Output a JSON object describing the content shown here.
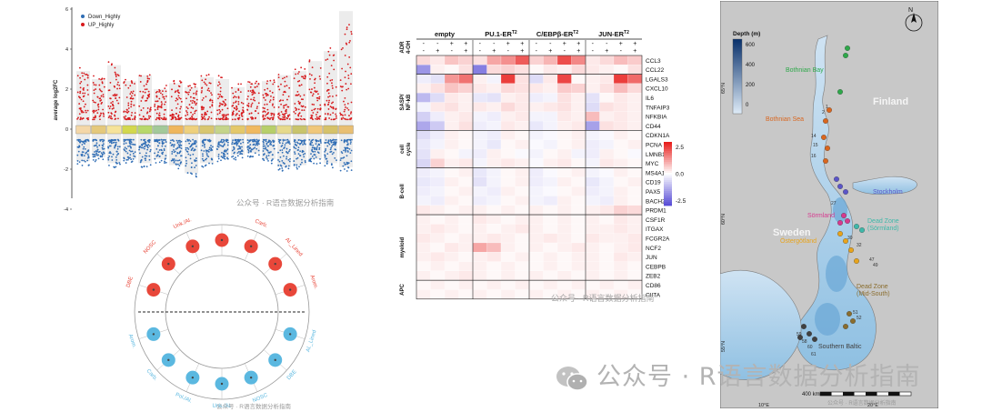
{
  "watermark": {
    "main": "公众号 · R语言数据分析指南",
    "small": "公众号 · R语言数据分析指南"
  },
  "colors": {
    "down": "#2f6db5",
    "up": "#d7191c",
    "circle_up": "#e8473a",
    "circle_down": "#5bb8e0",
    "heat_pos": "#e8201e",
    "heat_neg": "#5a4fd6",
    "map_land": "#c8c8c8",
    "map_water_deep": "#08306b",
    "map_water_shallow": "#deebf7"
  },
  "volcano": {
    "ylabel": "average log2FC",
    "legend": [
      {
        "label": "Down_Highly",
        "color": "#2f6db5"
      },
      {
        "label": "UP_Highly",
        "color": "#d7191c"
      }
    ],
    "yticks": [
      -4,
      -2,
      0,
      2,
      4,
      6
    ],
    "clusters": 18,
    "up_max": [
      2.9,
      2.5,
      3.2,
      2.4,
      2.7,
      2.0,
      2.3,
      2.1,
      2.6,
      2.5,
      2.1,
      2.3,
      2.4,
      2.7,
      2.9,
      3.4,
      3.9,
      5.9
    ],
    "down_min": [
      -1.6,
      -1.4,
      -1.7,
      -1.5,
      -1.7,
      -1.5,
      -1.8,
      -2.2,
      -1.7,
      -1.4,
      -1.3,
      -1.2,
      -1.5,
      -1.9,
      -1.8,
      -1.5,
      -1.7,
      -1.9
    ]
  },
  "radial": {
    "top_labels": [
      "DBE",
      "NOSC",
      "Unk./Al.",
      "Pol./Al.",
      "Carb.",
      "Al._Lined",
      "Arom."
    ],
    "bottom_labels": [
      "Arom.",
      "Carb.",
      "Pol./Al.",
      "Unk./Al.",
      "NOSC",
      "DBE",
      "Al._Lined"
    ]
  },
  "chart_data": {
    "type": "heatmap",
    "legend_ticks": [
      "2.5",
      "0.0",
      "-2.5"
    ],
    "col_groups": [
      {
        "name": "empty",
        "sup": ""
      },
      {
        "name": "PU.1-ER",
        "sup": "T2"
      },
      {
        "name": "C/EBPβ-ER",
        "sup": "T2"
      },
      {
        "name": "JUN-ER",
        "sup": "T2"
      }
    ],
    "annotation_rows": [
      {
        "name": "ADR",
        "values": [
          "-",
          "-",
          "+",
          "+",
          "-",
          "-",
          "+",
          "+",
          "-",
          "-",
          "+",
          "+",
          "-",
          "-",
          "+",
          "+"
        ]
      },
      {
        "name": "4-OH",
        "values": [
          "-",
          "+",
          "-",
          "+",
          "-",
          "+",
          "-",
          "+",
          "-",
          "+",
          "-",
          "+",
          "-",
          "+",
          "-",
          "+"
        ]
      }
    ],
    "row_groups": [
      {
        "name": "",
        "rows": [
          "CCL3",
          "CCL22"
        ]
      },
      {
        "name": "SASP/ NF-kB",
        "rows": [
          "LGALS3",
          "CXCL10",
          "IL6",
          "TNFAIP3",
          "NFKBIA",
          "CD44"
        ]
      },
      {
        "name": "cell cycle",
        "rows": [
          "CDKN1A",
          "PCNA",
          "LMNB1",
          "MYC"
        ]
      },
      {
        "name": "B-cell",
        "rows": [
          "MS4A1",
          "CD19",
          "PAX5",
          "BACH2",
          "PRDM1"
        ]
      },
      {
        "name": "myeloid",
        "rows": [
          "CSF1R",
          "ITGAX",
          "FCGR2A",
          "NCF2",
          "JUN",
          "CEBPB",
          "ZEB2"
        ]
      },
      {
        "name": "APC",
        "rows": [
          "CD86",
          "CIITA"
        ]
      }
    ],
    "values": [
      [
        0.5,
        0.3,
        0.8,
        0.6,
        0.4,
        1.2,
        1.5,
        2.2,
        0.6,
        1.0,
        2.4,
        1.6,
        0.3,
        0.5,
        0.9,
        0.7
      ],
      [
        -1.8,
        0.2,
        0.1,
        0.4,
        -2.2,
        0.5,
        0.6,
        0.4,
        0.1,
        0.3,
        0.2,
        0.5,
        0.3,
        0.2,
        0.1,
        0.4
      ],
      [
        -0.3,
        -0.5,
        1.4,
        1.9,
        0.2,
        -0.2,
        2.6,
        0.4,
        -0.6,
        0.3,
        2.5,
        0.1,
        0.2,
        0.3,
        2.6,
        2.0
      ],
      [
        0.2,
        0.4,
        0.8,
        0.6,
        0.3,
        0.2,
        0.5,
        0.4,
        0.3,
        0.2,
        0.7,
        0.6,
        0.2,
        0.4,
        0.9,
        0.5
      ],
      [
        -1.2,
        -0.6,
        0.3,
        0.2,
        -0.4,
        -0.5,
        0.2,
        0.3,
        -0.3,
        -0.2,
        0.4,
        0.2,
        -0.5,
        0.1,
        0.3,
        0.2
      ],
      [
        -0.2,
        0.3,
        0.4,
        0.2,
        0.3,
        0.2,
        0.5,
        0.3,
        0.2,
        0.3,
        0.4,
        0.2,
        -0.6,
        0.4,
        0.3,
        0.2
      ],
      [
        -0.8,
        -0.3,
        0.2,
        0.3,
        -0.2,
        -0.3,
        0.2,
        0.3,
        -0.2,
        -0.2,
        0.3,
        0.2,
        0.9,
        0.2,
        0.3,
        0.2
      ],
      [
        -1.5,
        -0.9,
        0.2,
        0.4,
        -0.3,
        -0.2,
        0.3,
        0.2,
        -0.4,
        -0.2,
        0.2,
        0.3,
        -1.6,
        0.4,
        0.3,
        0.2
      ],
      [
        -0.6,
        -0.3,
        0.2,
        0.1,
        -0.2,
        -0.3,
        0.2,
        0.1,
        -0.2,
        -0.1,
        0.1,
        0.2,
        -0.2,
        -0.1,
        0.2,
        0.1
      ],
      [
        -0.4,
        -0.2,
        0.2,
        0.1,
        -0.2,
        -0.4,
        0.1,
        0.2,
        -0.1,
        -0.2,
        0.1,
        0.2,
        -0.3,
        -0.2,
        0.1,
        0.2
      ],
      [
        -0.5,
        0.2,
        0.1,
        -0.2,
        -0.3,
        0.2,
        0.1,
        -0.1,
        -0.2,
        0.1,
        0.2,
        -0.2,
        -0.3,
        0.2,
        0.1,
        -0.1
      ],
      [
        -0.7,
        0.6,
        0.2,
        0.3,
        -0.2,
        0.2,
        0.3,
        0.2,
        -0.1,
        0.2,
        0.3,
        0.1,
        -0.2,
        0.3,
        0.2,
        0.1
      ],
      [
        -0.3,
        -0.2,
        0.1,
        0.2,
        -0.4,
        -0.2,
        0.1,
        0.2,
        -0.3,
        -0.1,
        0.1,
        0.2,
        -0.2,
        -0.1,
        0.2,
        0.1
      ],
      [
        -0.4,
        -0.3,
        0.2,
        0.1,
        -0.5,
        -0.2,
        0.1,
        0.2,
        -0.3,
        -0.2,
        0.2,
        0.1,
        -0.4,
        -0.2,
        0.1,
        0.2
      ],
      [
        -0.3,
        -0.2,
        0.1,
        0.2,
        -0.2,
        -0.3,
        0.2,
        0.1,
        -0.2,
        -0.1,
        0.1,
        0.2,
        -0.3,
        -0.2,
        0.2,
        0.1
      ],
      [
        -0.2,
        -0.3,
        0.2,
        0.1,
        -0.3,
        -0.2,
        0.1,
        0.2,
        -0.2,
        -0.3,
        0.2,
        0.1,
        -0.2,
        -0.3,
        0.2,
        0.1
      ],
      [
        0.3,
        0.2,
        0.1,
        0.2,
        0.2,
        0.1,
        0.2,
        0.1,
        0.2,
        0.1,
        0.2,
        0.1,
        0.2,
        0.3,
        0.6,
        0.5
      ],
      [
        0.2,
        0.1,
        0.2,
        0.1,
        0.3,
        0.2,
        0.1,
        0.2,
        0.2,
        0.1,
        0.2,
        0.1,
        0.2,
        0.1,
        0.3,
        0.2
      ],
      [
        0.2,
        0.3,
        0.2,
        0.1,
        0.2,
        0.1,
        0.2,
        0.3,
        0.2,
        0.1,
        0.2,
        0.1,
        0.2,
        0.2,
        0.3,
        0.2
      ],
      [
        0.3,
        0.2,
        0.1,
        0.2,
        0.2,
        0.3,
        0.2,
        0.1,
        0.2,
        0.3,
        0.2,
        0.1,
        0.3,
        0.2,
        0.2,
        0.3
      ],
      [
        0.2,
        0.1,
        0.3,
        0.2,
        1.2,
        0.9,
        0.2,
        0.1,
        0.2,
        0.1,
        0.2,
        0.3,
        0.2,
        0.1,
        0.2,
        0.3
      ],
      [
        0.2,
        0.3,
        0.2,
        0.1,
        0.2,
        0.3,
        0.1,
        0.2,
        0.1,
        0.2,
        0.1,
        0.2,
        0.2,
        0.1,
        0.3,
        0.2
      ],
      [
        0.1,
        0.2,
        0.1,
        0.2,
        0.2,
        0.1,
        0.2,
        0.1,
        0.1,
        0.2,
        0.1,
        0.2,
        0.2,
        0.1,
        0.2,
        0.1
      ],
      [
        0.2,
        0.1,
        0.2,
        0.3,
        0.2,
        0.1,
        0.2,
        0.1,
        0.2,
        0.1,
        0.2,
        0.1,
        0.2,
        0.1,
        0.2,
        0.1
      ],
      [
        0.1,
        0.2,
        0.1,
        0.2,
        0.1,
        0.2,
        0.1,
        0.2,
        0.1,
        0.2,
        0.1,
        0.2,
        0.1,
        0.2,
        0.1,
        0.2
      ],
      [
        0.2,
        0.1,
        0.2,
        0.1,
        0.2,
        0.1,
        0.2,
        0.1,
        0.2,
        0.1,
        0.2,
        0.1,
        0.2,
        0.1,
        0.2,
        0.1
      ]
    ]
  },
  "map": {
    "legend_title": "Depth (m)",
    "legend_ticks": [
      "600",
      "400",
      "200",
      "0"
    ],
    "scale_label": "400 km",
    "countries": [
      "Finland",
      "Sweden"
    ],
    "regions": [
      {
        "label": "Bothnian Bay",
        "color": "#2ea84a"
      },
      {
        "label": "Bothnian Sea",
        "color": "#d9661f"
      },
      {
        "label": "Stockholm",
        "color": "#5b55c8"
      },
      {
        "label": "Sörmland",
        "color": "#d63a8f"
      },
      {
        "label": "Dead Zone (Sörmland)",
        "color": "#3fb8a9"
      },
      {
        "label": "Östergötland",
        "color": "#e8a41c"
      },
      {
        "label": "Dead Zone (Mid-South)",
        "color": "#8a6d2e"
      },
      {
        "label": "Southern Baltic",
        "color": "#404040"
      }
    ],
    "station_labels": [
      "1",
      "2",
      "14",
      "15",
      "16",
      "27",
      "30",
      "32",
      "47",
      "49",
      "51",
      "52",
      "58",
      "59",
      "60",
      "61"
    ],
    "lat_labels": [
      "65°N",
      "60°N",
      "55°N"
    ],
    "lon_labels": [
      "10°E",
      "20°E"
    ],
    "north": "N"
  }
}
